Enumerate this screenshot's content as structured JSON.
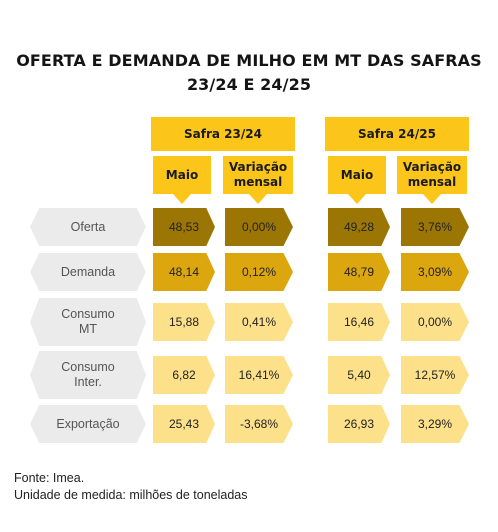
{
  "title": {
    "line1": "OFERTA E DEMANDA DE MILHO EM MT DAS SAFRAS",
    "line2": "23/24 E 24/25"
  },
  "chart_data": {
    "type": "table",
    "groups": [
      {
        "name": "Safra 23/24",
        "columns": [
          "Maio",
          "Variação mensal"
        ]
      },
      {
        "name": "Safra 24/25",
        "columns": [
          "Maio",
          "Variação mensal"
        ]
      }
    ],
    "rows": [
      {
        "label": "Oferta",
        "values": [
          "48,53",
          "0,00%",
          "49,28",
          "3,76%"
        ]
      },
      {
        "label": "Demanda",
        "values": [
          "48,14",
          "0,12%",
          "48,79",
          "3,09%"
        ]
      },
      {
        "label": "Consumo\nMT",
        "values": [
          "15,88",
          "0,41%",
          "16,46",
          "0,00%"
        ]
      },
      {
        "label": "Consumo\nInter.",
        "values": [
          "6,82",
          "16,41%",
          "5,40",
          "12,57%"
        ]
      },
      {
        "label": "Exportação",
        "values": [
          "25,43",
          "-3,68%",
          "26,93",
          "3,29%"
        ]
      }
    ],
    "row_colors": [
      "#9c7605",
      "#dca60e",
      "#fde08a",
      "#fde08a",
      "#fde08a"
    ]
  },
  "footer": {
    "source": "Fonte: Imea.",
    "unit": "Unidade de medida: milhões de toneladas"
  }
}
